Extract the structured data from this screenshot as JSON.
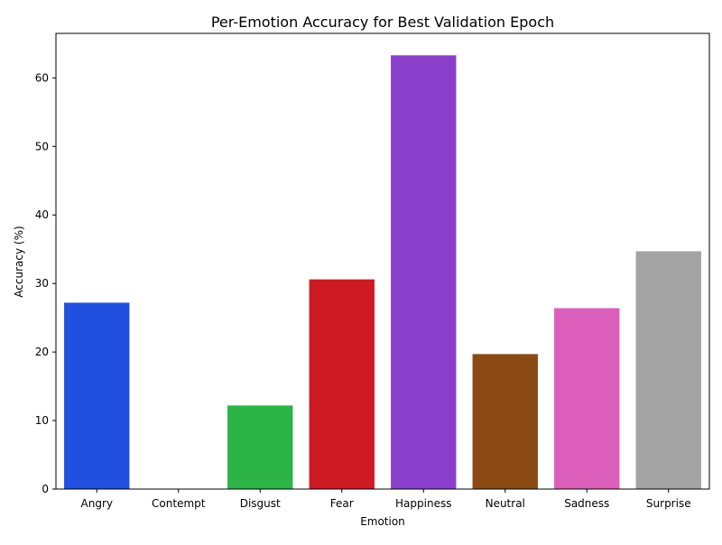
{
  "chart_data": {
    "type": "bar",
    "title": "Per-Emotion Accuracy for Best Validation Epoch",
    "xlabel": "Emotion",
    "ylabel": "Accuracy (%)",
    "categories": [
      "Angry",
      "Contempt",
      "Disgust",
      "Fear",
      "Happiness",
      "Neutral",
      "Sadness",
      "Surprise"
    ],
    "values": [
      27.2,
      0.0,
      12.2,
      30.6,
      63.3,
      19.7,
      26.4,
      34.7
    ],
    "colors": [
      "#2150e0",
      "#ff7f0e",
      "#2db446",
      "#cd1a23",
      "#8a3fcb",
      "#8b4a14",
      "#dc5fbc",
      "#a3a3a3"
    ],
    "yticks": [
      0,
      10,
      20,
      30,
      40,
      50,
      60
    ],
    "ylim": [
      0,
      66.5
    ],
    "grid": false,
    "legend": "none"
  }
}
